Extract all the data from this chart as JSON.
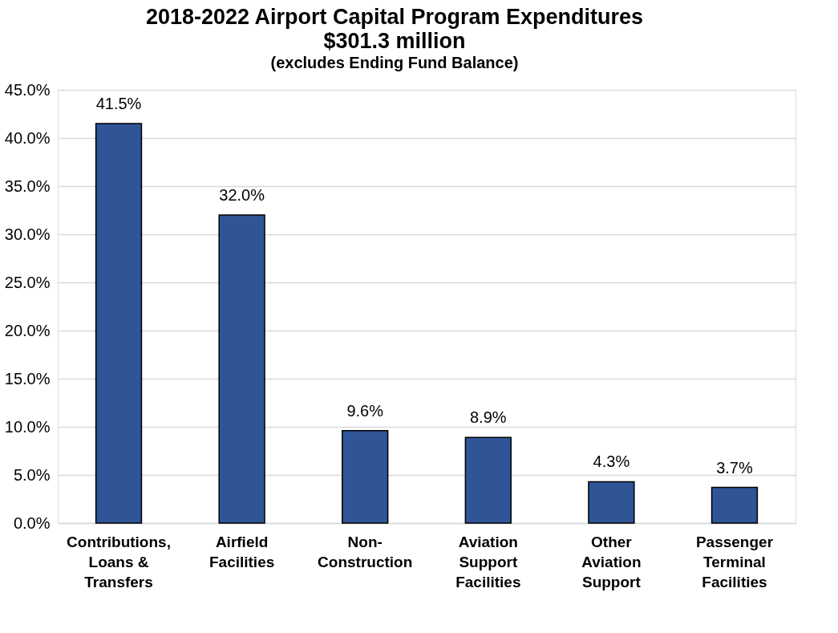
{
  "chart_data": {
    "type": "bar",
    "title": "2018-2022 Airport Capital Program Expenditures\n$301.3 million",
    "subtitle": "(excludes Ending Fund Balance)",
    "categories": [
      "Contributions,\nLoans &\nTransfers",
      "Airfield\nFacilities",
      "Non-\nConstruction",
      "Aviation\nSupport\nFacilities",
      "Other\nAviation\nSupport",
      "Passenger\nTerminal\nFacilities"
    ],
    "values": [
      41.5,
      32.0,
      9.6,
      8.9,
      4.3,
      3.7
    ],
    "value_labels": [
      "41.5%",
      "32.0%",
      "9.6%",
      "8.9%",
      "4.3%",
      "3.7%"
    ],
    "color": "#2f5597",
    "ylim": [
      0,
      45
    ],
    "yticks": [
      {
        "value": 0,
        "label": "0.0%"
      },
      {
        "value": 5,
        "label": "5.0%"
      },
      {
        "value": 10,
        "label": "10.0%"
      },
      {
        "value": 15,
        "label": "15.0%"
      },
      {
        "value": 20,
        "label": "20.0%"
      },
      {
        "value": 25,
        "label": "25.0%"
      },
      {
        "value": 30,
        "label": "30.0%"
      },
      {
        "value": 35,
        "label": "35.0%"
      },
      {
        "value": 40,
        "label": "40.0%"
      },
      {
        "value": 45,
        "label": "45.0%"
      }
    ],
    "grid": "y"
  }
}
